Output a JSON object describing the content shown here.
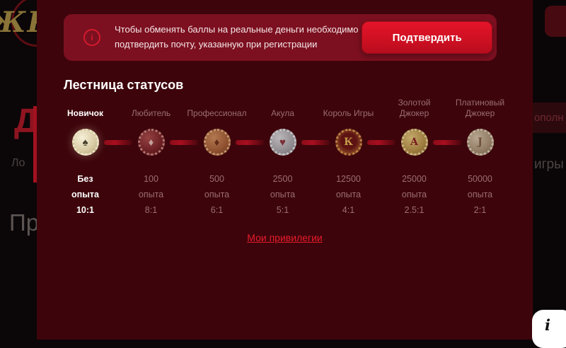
{
  "background": {
    "logo_fragment": "ЖК",
    "left_fragments": {
      "big_letter": "Д",
      "text_1": "Ло",
      "text_2": "Пр"
    },
    "right_fragments": {
      "band_text": "ополн",
      "games_text": "игры"
    }
  },
  "banner": {
    "info_icon_glyph": "i",
    "message": "Чтобы обменять баллы на реальные деньги необходимо подтвердить почту, указанную при регистрации",
    "confirm_label": "Подтвердить"
  },
  "modal": {
    "title": "Лестница статусов",
    "privileges_link": "Мои привилегии"
  },
  "ladder": {
    "statuses": [
      {
        "name": "Новичок",
        "experience": "Без",
        "experience_unit": "опыта",
        "ratio": "10:1",
        "chip_style": "silver",
        "symbol": "♠",
        "active": true
      },
      {
        "name": "Любитель",
        "experience": "100",
        "experience_unit": "опыта",
        "ratio": "8:1",
        "chip_style": "red",
        "symbol": "♦",
        "active": false
      },
      {
        "name": "Профессионал",
        "experience": "500",
        "experience_unit": "опыта",
        "ratio": "6:1",
        "chip_style": "copper",
        "symbol": "♦",
        "active": false
      },
      {
        "name": "Акула",
        "experience": "2500",
        "experience_unit": "опыта",
        "ratio": "5:1",
        "chip_style": "gray",
        "symbol": "♥",
        "active": false
      },
      {
        "name": "Король Игры",
        "experience": "12500",
        "experience_unit": "опыта",
        "ratio": "4:1",
        "chip_style": "king",
        "symbol": "К",
        "active": false
      },
      {
        "name": "Золотой Джокер",
        "experience": "25000",
        "experience_unit": "опыта",
        "ratio": "2.5:1",
        "chip_style": "gold",
        "symbol": "А",
        "active": false
      },
      {
        "name": "Платиновый Джокер",
        "experience": "50000",
        "experience_unit": "опыта",
        "ratio": "2:1",
        "chip_style": "platinum",
        "symbol": "J",
        "active": false
      }
    ]
  },
  "info_button": {
    "glyph": "i"
  },
  "colors": {
    "accent_red": "#d8142a",
    "panel_background": "#3d050b",
    "banner_background": "#7c1020",
    "page_background": "#0b0608"
  }
}
